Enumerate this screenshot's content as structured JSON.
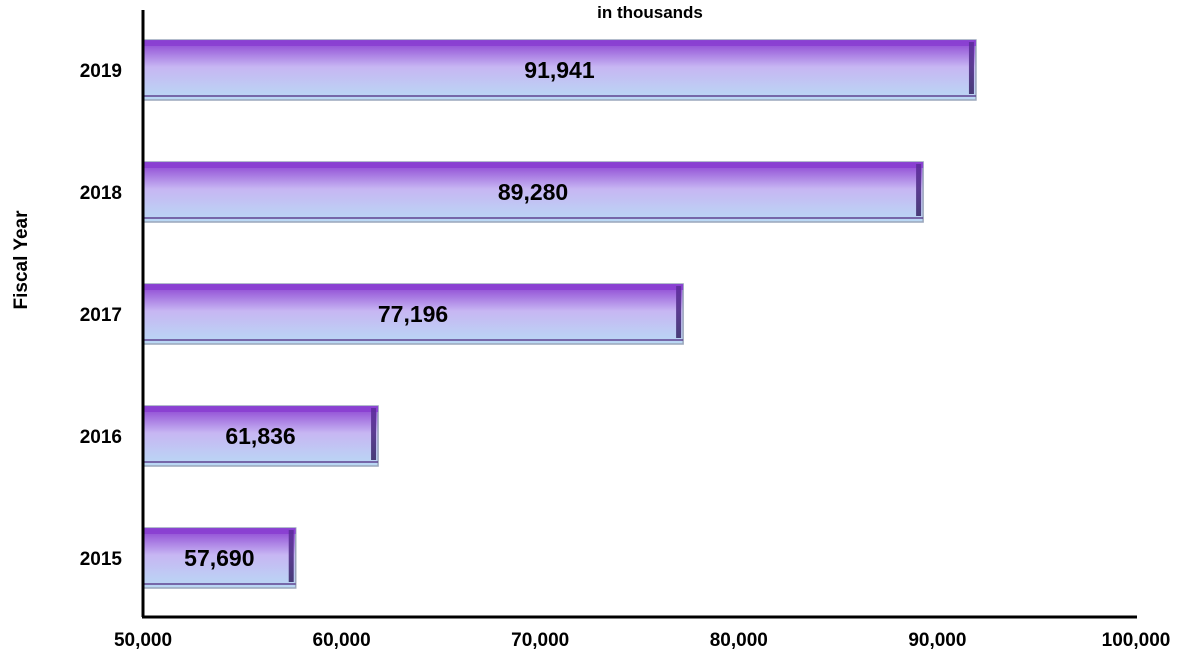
{
  "chart_data": {
    "type": "bar",
    "orientation": "horizontal",
    "subtitle": "in thousands",
    "ylabel": "Fiscal Year",
    "xlabel": "",
    "categories": [
      "2019",
      "2018",
      "2017",
      "2016",
      "2015"
    ],
    "values": [
      91941,
      89280,
      77196,
      61836,
      57690
    ],
    "data_labels": [
      "91,941",
      "89,280",
      "77,196",
      "61,836",
      "57,690"
    ],
    "xlim": [
      50000,
      100000
    ],
    "x_ticks": [
      "50,000",
      "60,000",
      "70,000",
      "80,000",
      "90,000",
      "100,000"
    ],
    "grid": false,
    "legend": "none",
    "colors": {
      "bar_top": "#8a3fd1",
      "bar_mid": "#c7b6f3",
      "bar_bottom": "#b9d9f4",
      "bar_edge": "#5a3a8a",
      "axis": "#000000"
    }
  }
}
